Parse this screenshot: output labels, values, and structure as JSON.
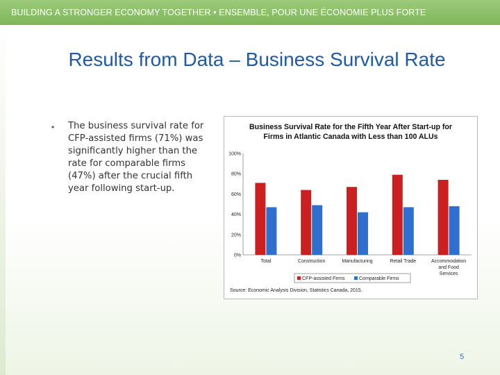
{
  "banner": {
    "text": "BUILDING A STRONGER ECONOMY TOGETHER • ENSEMBLE, POUR UNE ÉCONOMIE PLUS FORTE"
  },
  "slide": {
    "title": "Results from Data – Business Survival Rate",
    "bullet": "The business survival rate for CFP-assisted firms (71%) was significantly higher than the rate for comparable firms (47%) after the crucial fifth year following start-up.",
    "page_number": "5"
  },
  "chart_data": {
    "type": "bar",
    "title": "Business Survival Rate for the Fifth Year After Start-up for Firms in Atlantic Canada with Less than 100 ALUs",
    "categories": [
      "Total",
      "Construction",
      "Manufacturing",
      "Retail Trade",
      "Accommodation and Food Services"
    ],
    "series": [
      {
        "name": "CFP-assisted Firms",
        "color": "#cc1f1f",
        "values": [
          71,
          64,
          67,
          79,
          74
        ]
      },
      {
        "name": "Comparable Firms",
        "color": "#2f6fd0",
        "values": [
          47,
          49,
          42,
          47,
          48
        ]
      }
    ],
    "ylim": [
      0,
      100
    ],
    "yticks": [
      "0%",
      "20%",
      "40%",
      "60%",
      "80%",
      "100%"
    ],
    "grid": false,
    "legend": "bottom",
    "source": "Source: Economic Analysis Division, Statistics Canada, 2015."
  }
}
